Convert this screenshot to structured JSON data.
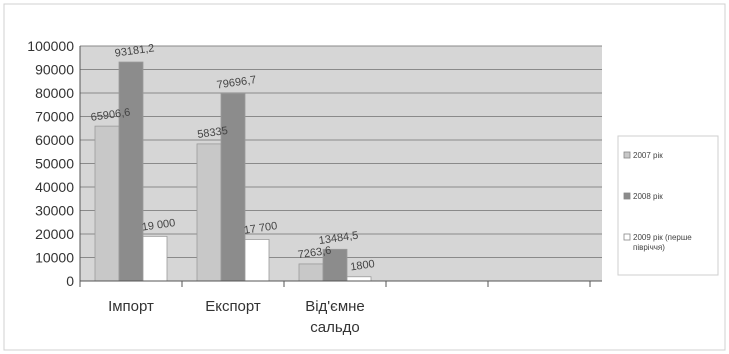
{
  "chart_data": {
    "type": "bar",
    "categories": [
      "Імпорт",
      "Експорт",
      "Від'ємне сальдо"
    ],
    "category_lines": [
      [
        "Імпорт"
      ],
      [
        "Експорт"
      ],
      [
        "Від'ємне",
        "сальдо"
      ]
    ],
    "series": [
      {
        "name": "2007 рік",
        "values": [
          65906.6,
          58335,
          7263.6
        ],
        "labels": [
          "65906,6",
          "58335",
          "7263,6"
        ],
        "color": "#c8c8c8"
      },
      {
        "name": "2008 рік",
        "values": [
          93181.2,
          79696.7,
          13484.5
        ],
        "labels": [
          "93181,2",
          "79696,7",
          "13484,5"
        ],
        "color": "#8c8c8c"
      },
      {
        "name": "2009 рік (перше півріччя)",
        "legend_lines": [
          "2009 рік (перше",
          "півріччя)"
        ],
        "values": [
          19000,
          17700,
          1800
        ],
        "labels": [
          "19 000",
          "17 700",
          "1800"
        ],
        "color": "#ffffff"
      }
    ],
    "ylim": [
      0,
      100000
    ],
    "ytick_step": 10000,
    "yticks": [
      "0",
      "10000",
      "20000",
      "30000",
      "40000",
      "50000",
      "60000",
      "70000",
      "80000",
      "90000",
      "100000"
    ],
    "grid": true,
    "legend_position": "right",
    "plot_background": "#d6d6d6",
    "title": "",
    "xlabel": "",
    "ylabel": ""
  }
}
